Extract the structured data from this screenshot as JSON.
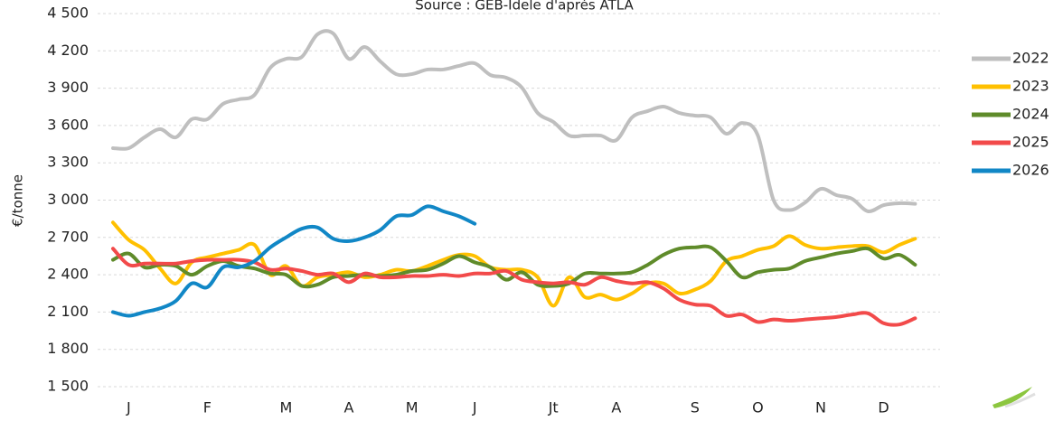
{
  "chart_data": {
    "type": "line",
    "title": "Source : GEB-Idele d'après ATLA",
    "y_label": "€/tonne",
    "categories": [
      null,
      "J",
      null,
      null,
      null,
      null,
      "F",
      null,
      null,
      null,
      null,
      "M",
      null,
      null,
      null,
      "A",
      null,
      null,
      null,
      "M",
      null,
      null,
      null,
      "J",
      null,
      null,
      null,
      null,
      "Jt",
      null,
      null,
      null,
      "A",
      null,
      null,
      null,
      null,
      "S",
      null,
      null,
      null,
      "O",
      null,
      null,
      null,
      "N",
      null,
      null,
      null,
      "D",
      null,
      null
    ],
    "ylim": [
      1500,
      4500
    ],
    "yticks": [
      {
        "value": 1500,
        "label": "1 500"
      },
      {
        "value": 1800,
        "label": "1 800"
      },
      {
        "value": 2100,
        "label": "2 100"
      },
      {
        "value": 2400,
        "label": "2 400"
      },
      {
        "value": 2700,
        "label": "2 700"
      },
      {
        "value": 3000,
        "label": "3 000"
      },
      {
        "value": 3300,
        "label": "3 300"
      },
      {
        "value": 3600,
        "label": "3 600"
      },
      {
        "value": 3900,
        "label": "3 900"
      },
      {
        "value": 4200,
        "label": "4 200"
      },
      {
        "value": 4500,
        "label": "4 500"
      }
    ],
    "grid": true,
    "legend": "right",
    "series": [
      {
        "name": "2022",
        "color": "#bfbfbf",
        "values": [
          3418,
          3418,
          3505,
          3570,
          3505,
          3650,
          3650,
          3774,
          3810,
          3846,
          4064,
          4136,
          4151,
          4333,
          4340,
          4136,
          4231,
          4115,
          4013,
          4013,
          4050,
          4050,
          4079,
          4100,
          4006,
          3984,
          3904,
          3701,
          3628,
          3519,
          3519,
          3519,
          3482,
          3665,
          3716,
          3752,
          3701,
          3679,
          3665,
          3534,
          3620,
          3520,
          3000,
          2920,
          2980,
          3090,
          3040,
          3010,
          2910,
          2960,
          2975,
          2970
        ]
      },
      {
        "name": "2023",
        "color": "#ffc000",
        "values": [
          2820,
          2680,
          2600,
          2450,
          2330,
          2500,
          2540,
          2570,
          2600,
          2640,
          2400,
          2470,
          2310,
          2380,
          2400,
          2420,
          2380,
          2400,
          2440,
          2430,
          2470,
          2520,
          2560,
          2550,
          2460,
          2440,
          2440,
          2380,
          2150,
          2380,
          2220,
          2240,
          2200,
          2250,
          2330,
          2330,
          2250,
          2280,
          2350,
          2510,
          2550,
          2600,
          2630,
          2710,
          2640,
          2610,
          2620,
          2630,
          2630,
          2580,
          2640,
          2690
        ]
      },
      {
        "name": "2024",
        "color": "#5f8b2a",
        "values": [
          2520,
          2570,
          2460,
          2480,
          2470,
          2400,
          2470,
          2510,
          2470,
          2450,
          2410,
          2400,
          2310,
          2320,
          2380,
          2390,
          2400,
          2390,
          2400,
          2430,
          2440,
          2490,
          2550,
          2500,
          2460,
          2360,
          2420,
          2320,
          2310,
          2330,
          2410,
          2410,
          2410,
          2420,
          2480,
          2560,
          2610,
          2620,
          2620,
          2510,
          2380,
          2420,
          2440,
          2450,
          2510,
          2540,
          2570,
          2590,
          2610,
          2530,
          2560,
          2480
        ]
      },
      {
        "name": "2025",
        "color": "#f24a4a",
        "values": [
          2610,
          2480,
          2490,
          2490,
          2490,
          2510,
          2520,
          2520,
          2520,
          2500,
          2440,
          2450,
          2430,
          2400,
          2410,
          2340,
          2410,
          2380,
          2380,
          2390,
          2390,
          2400,
          2390,
          2410,
          2410,
          2430,
          2360,
          2340,
          2330,
          2340,
          2320,
          2380,
          2350,
          2330,
          2340,
          2290,
          2200,
          2160,
          2150,
          2070,
          2080,
          2020,
          2040,
          2030,
          2040,
          2050,
          2060,
          2080,
          2090,
          2010,
          2000,
          2050
        ]
      },
      {
        "name": "2026",
        "color": "#1187c6",
        "values": [
          2100,
          2070,
          2100,
          2130,
          2190,
          2330,
          2300,
          2460,
          2460,
          2510,
          2620,
          2700,
          2770,
          2780,
          2690,
          2670,
          2700,
          2760,
          2870,
          2880,
          2950,
          2910,
          2870,
          2810,
          null,
          null,
          null,
          null,
          null,
          null,
          null,
          null,
          null,
          null,
          null,
          null,
          null,
          null,
          null,
          null,
          null,
          null,
          null,
          null,
          null,
          null,
          null,
          null,
          null,
          null,
          null,
          null
        ]
      }
    ]
  }
}
